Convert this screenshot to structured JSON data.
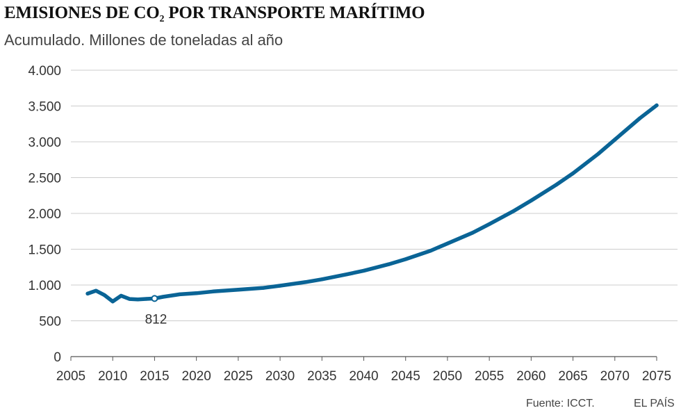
{
  "header": {
    "title_main": "EMISIONES DE CO",
    "title_sub": "2",
    "title_rest": " POR TRANSPORTE MARÍTIMO",
    "subtitle": "Acumulado. Millones de toneladas al año"
  },
  "footer": {
    "source": "Fuente: ICCT.",
    "brand": "EL PAÍS"
  },
  "colors": {
    "line": "#0a6496",
    "grid": "#cccccc",
    "axis": "#555555"
  },
  "chart_data": {
    "type": "line",
    "title": "EMISIONES DE CO2 POR TRANSPORTE MARÍTIMO",
    "subtitle": "Acumulado. Millones de toneladas al año",
    "xlabel": "",
    "ylabel": "",
    "xlim": [
      2005,
      2075
    ],
    "ylim": [
      0,
      4000
    ],
    "x_ticks": [
      2005,
      2010,
      2015,
      2020,
      2025,
      2030,
      2035,
      2040,
      2045,
      2050,
      2055,
      2060,
      2065,
      2070,
      2075
    ],
    "x_tick_labels": [
      "2005",
      "2010",
      "2015",
      "2020",
      "2025",
      "2030",
      "2035",
      "2040",
      "2045",
      "2050",
      "2055",
      "2060",
      "2065",
      "2070",
      "2075"
    ],
    "y_ticks": [
      0,
      500,
      1000,
      1500,
      2000,
      2500,
      3000,
      3500,
      4000
    ],
    "y_tick_labels": [
      "0",
      "500",
      "1.000",
      "1.500",
      "2.000",
      "2.500",
      "3.000",
      "3.500",
      "4.000"
    ],
    "grid": "horizontal",
    "series": [
      {
        "name": "Emisiones de CO2",
        "x": [
          2007,
          2008,
          2009,
          2010,
          2011,
          2012,
          2013,
          2014,
          2015,
          2016,
          2018,
          2020,
          2022,
          2025,
          2028,
          2030,
          2033,
          2035,
          2038,
          2040,
          2043,
          2045,
          2048,
          2050,
          2053,
          2055,
          2058,
          2060,
          2063,
          2065,
          2068,
          2070,
          2073,
          2075
        ],
        "values": [
          880,
          920,
          860,
          770,
          850,
          805,
          798,
          806,
          812,
          835,
          870,
          885,
          910,
          935,
          960,
          990,
          1040,
          1080,
          1150,
          1200,
          1290,
          1360,
          1480,
          1580,
          1730,
          1850,
          2040,
          2180,
          2400,
          2560,
          2830,
          3030,
          3330,
          3510
        ]
      }
    ],
    "annotations": [
      {
        "x": 2015,
        "y": 812,
        "label": "812"
      }
    ]
  }
}
